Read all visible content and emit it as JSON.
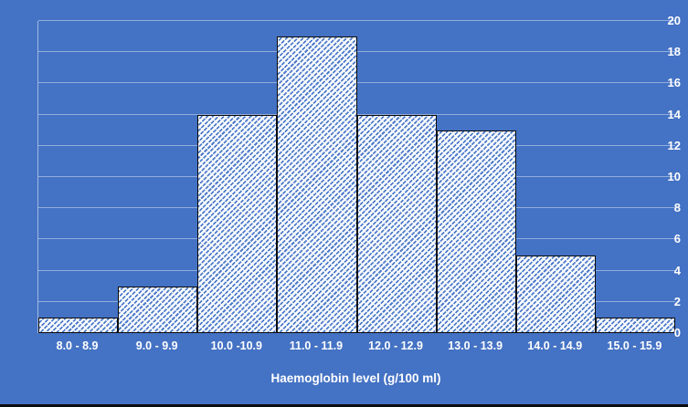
{
  "chart_data": {
    "type": "bar",
    "subtype": "histogram",
    "title": "",
    "xlabel": "Haemoglobin level (g/100 ml)",
    "ylabel": "",
    "categories": [
      "8.0 - 8.9",
      "9.0 - 9.9",
      "10.0 -10.9",
      "11.0 - 11.9",
      "12.0 - 12.9",
      "13.0 - 13.9",
      "14.0 - 14.9",
      "15.0 - 15.9"
    ],
    "values": [
      1,
      3,
      14,
      19,
      14,
      13,
      5,
      1
    ],
    "ylim": [
      0,
      20
    ],
    "yticks": [
      0,
      2,
      4,
      6,
      8,
      10,
      12,
      14,
      16,
      18,
      20
    ],
    "grid": "horizontal",
    "legend": "none",
    "gap_width_percent": 0,
    "bar_pattern": "diagonal-hatch-up-dashed",
    "colors": {
      "background": "#4472C4",
      "gridline": "rgba(255,255,255,0.42)",
      "axis_line": "rgba(255,255,255,0.50)",
      "bar_fill": "#FFFFFF",
      "bar_hatch": "#4D7BCA",
      "bar_border": "#0A0A0A",
      "text": "#FFFFFF",
      "bottom_edge": "#0D0D0D"
    }
  }
}
